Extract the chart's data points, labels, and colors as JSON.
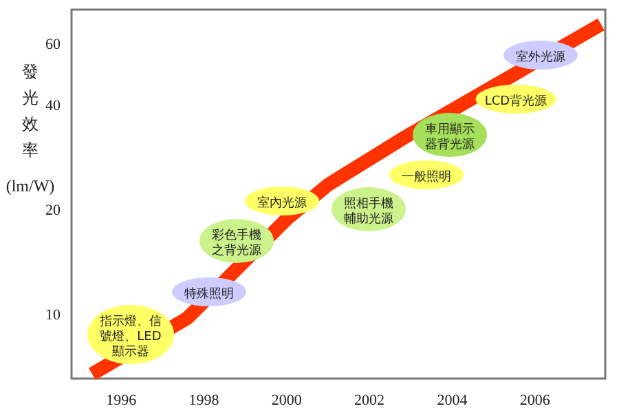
{
  "chart_data": {
    "type": "line",
    "ylabel": "發光效率(lm/W)",
    "color": "#ff3300",
    "grid": false,
    "log": "y",
    "x": [
      1995.3,
      1997.6,
      2000.0,
      2001.0,
      2002.8,
      2007.6
    ],
    "values": [
      6.7,
      9.7,
      18.7,
      23.5,
      31.9,
      68
    ],
    "xlim": [
      1994.8,
      2007.7
    ],
    "ylim": [
      6.5,
      75
    ],
    "xticks": [
      1996,
      1998,
      2000,
      2002,
      2004,
      2006
    ],
    "yticks": [
      10,
      20,
      40,
      60
    ],
    "annotations": [
      "指示燈、信號燈、LED顯示器",
      "特殊照明",
      "彩色手機之背光源",
      "室內光源",
      "照相手機輔助光源",
      "一般照明",
      "車用顯示器背光源",
      "LCD背光源",
      "室外光源"
    ]
  }
}
